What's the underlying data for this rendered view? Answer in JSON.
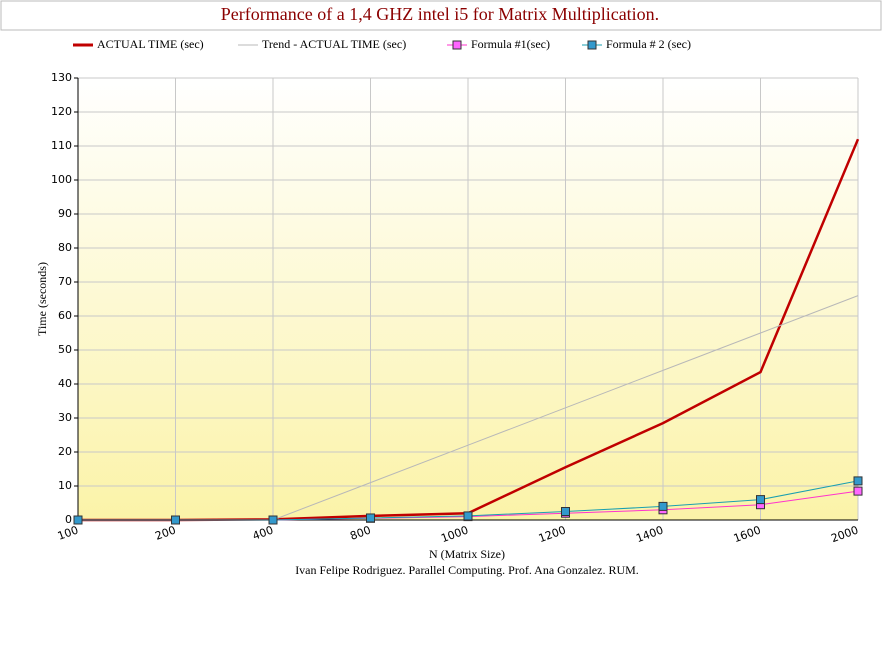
{
  "chart_data": {
    "type": "line",
    "title": "Performance of a 1,4 GHZ intel i5 for Matrix Multiplication.",
    "x_label": "N (Matrix Size)",
    "y_label": "Time (seconds)",
    "caption": "Ivan Felipe Rodriguez. Parallel Computing. Prof. Ana Gonzalez. RUM.",
    "categories": [
      "100",
      "200",
      "400",
      "800",
      "1000",
      "1200",
      "1400",
      "1600",
      "2000"
    ],
    "ylim": [
      0,
      130
    ],
    "yticks": [
      0,
      10,
      20,
      30,
      40,
      50,
      60,
      70,
      80,
      90,
      100,
      110,
      120,
      130
    ],
    "grid": true,
    "series": [
      {
        "name": "ACTUAL TIME (sec)",
        "color": "#c00000",
        "values": [
          0,
          0,
          0.2,
          1.2,
          2,
          15.5,
          28.5,
          43.5,
          112
        ]
      },
      {
        "name": "Trend - ACTUAL TIME (sec)",
        "color": "#b8b8b8",
        "values": [
          null,
          null,
          0,
          11,
          22,
          33,
          44,
          55,
          66
        ]
      },
      {
        "name": "Formula #1(sec)",
        "color": "#ff33cc",
        "values": [
          0,
          0,
          0,
          0.5,
          1,
          2,
          3,
          4.5,
          8.5
        ]
      },
      {
        "name": "Formula # 2 (sec)",
        "color": "#1a9fb0",
        "values": [
          0,
          0,
          0,
          0.6,
          1.2,
          2.5,
          4,
          6,
          11.5
        ]
      }
    ]
  }
}
